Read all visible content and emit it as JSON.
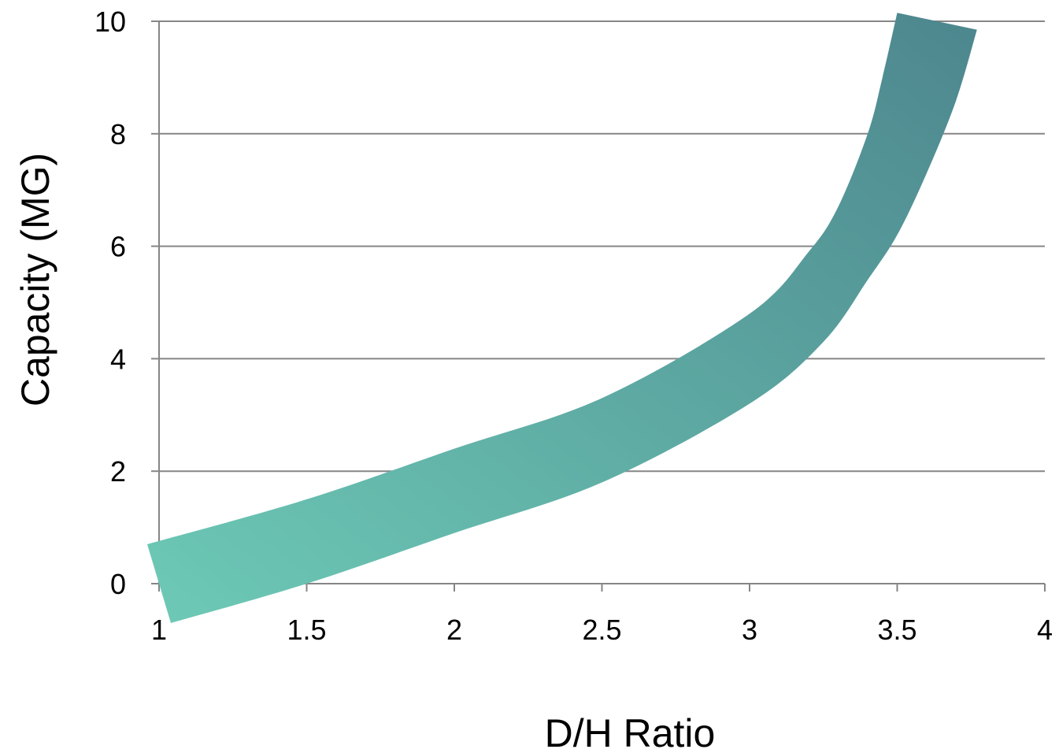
{
  "chart_data": {
    "type": "area",
    "title": "",
    "xlabel": "D/H Ratio",
    "ylabel": "Capacity (MG)",
    "xlim": [
      1,
      4
    ],
    "ylim": [
      0,
      10
    ],
    "x_ticks": [
      {
        "value": 1,
        "label": "1"
      },
      {
        "value": 1.5,
        "label": "1.5"
      },
      {
        "value": 2,
        "label": "2"
      },
      {
        "value": 2.5,
        "label": "2.5"
      },
      {
        "value": 3,
        "label": "3"
      },
      {
        "value": 3.5,
        "label": "3.5"
      },
      {
        "value": 4,
        "label": "4"
      }
    ],
    "y_ticks": [
      {
        "value": 0,
        "label": "0"
      },
      {
        "value": 2,
        "label": "2"
      },
      {
        "value": 4,
        "label": "4"
      },
      {
        "value": 6,
        "label": "6"
      },
      {
        "value": 8,
        "label": "8"
      },
      {
        "value": 10,
        "label": "10"
      }
    ],
    "grid": "horizontal",
    "legend": "none",
    "band": {
      "upper": [
        {
          "x": 0.96,
          "y": 0.7
        },
        {
          "x": 1.5,
          "y": 1.5
        },
        {
          "x": 2.0,
          "y": 2.4
        },
        {
          "x": 2.5,
          "y": 3.3
        },
        {
          "x": 3.0,
          "y": 4.8
        },
        {
          "x": 3.2,
          "y": 5.9
        },
        {
          "x": 3.3,
          "y": 6.7
        },
        {
          "x": 3.4,
          "y": 8.0
        },
        {
          "x": 3.45,
          "y": 9.0
        },
        {
          "x": 3.5,
          "y": 10.15
        }
      ],
      "lower": [
        {
          "x": 1.04,
          "y": -0.7
        },
        {
          "x": 1.5,
          "y": 0.0
        },
        {
          "x": 2.0,
          "y": 0.9
        },
        {
          "x": 2.5,
          "y": 1.8
        },
        {
          "x": 3.0,
          "y": 3.2
        },
        {
          "x": 3.25,
          "y": 4.3
        },
        {
          "x": 3.4,
          "y": 5.4
        },
        {
          "x": 3.5,
          "y": 6.2
        },
        {
          "x": 3.6,
          "y": 7.3
        },
        {
          "x": 3.7,
          "y": 8.6
        },
        {
          "x": 3.77,
          "y": 9.85
        }
      ],
      "color_start": "#6dcab6",
      "color_end": "#4d868e"
    },
    "gridline_color": "#868686",
    "axis_color": "#868686"
  }
}
